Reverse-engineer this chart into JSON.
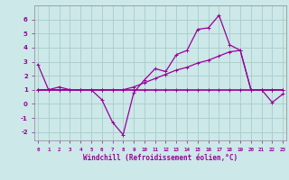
{
  "xlabel": "Windchill (Refroidissement éolien,°C)",
  "bg_color": "#cce8e8",
  "grid_color": "#aacccc",
  "line_color": "#990099",
  "x_ticks": [
    0,
    1,
    2,
    3,
    4,
    5,
    6,
    7,
    8,
    9,
    10,
    11,
    12,
    13,
    14,
    15,
    16,
    17,
    18,
    19,
    20,
    21,
    22,
    23
  ],
  "y_ticks": [
    -2,
    -1,
    0,
    1,
    2,
    3,
    4,
    5,
    6
  ],
  "ylim": [
    -2.6,
    7.0
  ],
  "xlim": [
    -0.3,
    23.3
  ],
  "series": [
    {
      "x": [
        0,
        1,
        2,
        3,
        4,
        5,
        6,
        7,
        8,
        9,
        10,
        11,
        12,
        13,
        14,
        15,
        16,
        17,
        18,
        19,
        20,
        21,
        22,
        23
      ],
      "y": [
        2.8,
        1.0,
        1.2,
        1.0,
        1.0,
        1.0,
        0.3,
        -1.3,
        -2.2,
        0.8,
        1.7,
        2.5,
        2.3,
        3.5,
        3.8,
        5.3,
        5.4,
        6.3,
        4.2,
        3.8,
        1.0,
        1.0,
        0.1,
        0.7
      ],
      "lw": 0.9
    },
    {
      "x": [
        0,
        1,
        2,
        3,
        4,
        5,
        6,
        7,
        8,
        9,
        10,
        11,
        12,
        13,
        14,
        15,
        16,
        17,
        18,
        19,
        20,
        21,
        22,
        23
      ],
      "y": [
        1.0,
        1.0,
        1.0,
        1.0,
        1.0,
        1.0,
        1.0,
        1.0,
        1.0,
        1.0,
        1.0,
        1.0,
        1.0,
        1.0,
        1.0,
        1.0,
        1.0,
        1.0,
        1.0,
        1.0,
        1.0,
        1.0,
        1.0,
        1.0
      ],
      "lw": 1.2
    },
    {
      "x": [
        0,
        1,
        2,
        3,
        4,
        5,
        6,
        7,
        8,
        9,
        10,
        11,
        12,
        13,
        14,
        15,
        16,
        17,
        18,
        19,
        20,
        21,
        22,
        23
      ],
      "y": [
        1.0,
        1.0,
        1.0,
        1.0,
        1.0,
        1.0,
        1.0,
        1.0,
        1.0,
        1.2,
        1.5,
        1.8,
        2.1,
        2.4,
        2.6,
        2.9,
        3.1,
        3.4,
        3.7,
        3.8,
        1.0,
        1.0,
        1.0,
        1.0
      ],
      "lw": 0.9
    }
  ]
}
